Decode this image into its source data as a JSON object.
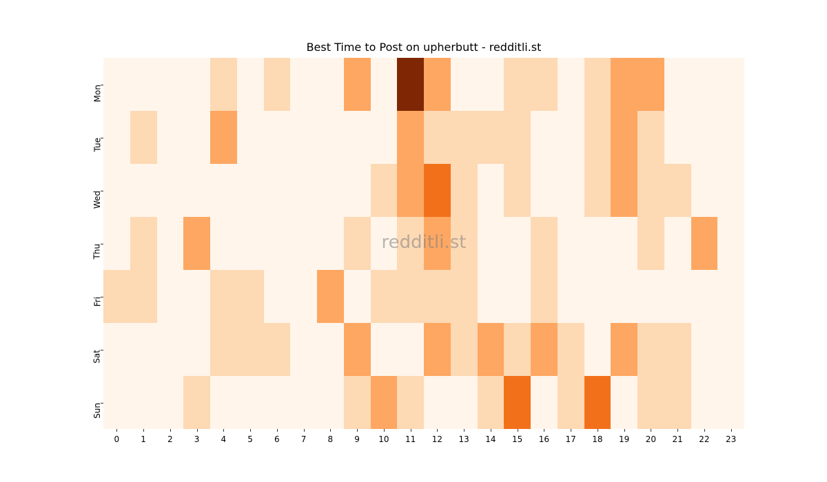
{
  "chart_data": {
    "type": "heatmap",
    "title": "Best Time to Post on upherbutt - redditli.st",
    "xlabel": "",
    "ylabel": "",
    "x": [
      "0",
      "1",
      "2",
      "3",
      "4",
      "5",
      "6",
      "7",
      "8",
      "9",
      "10",
      "11",
      "12",
      "13",
      "14",
      "15",
      "16",
      "17",
      "18",
      "19",
      "20",
      "21",
      "22",
      "23"
    ],
    "y": [
      "Mon",
      "Tue",
      "Wed",
      "Thu",
      "Fri",
      "Sat",
      "Sun"
    ],
    "colormap": "Oranges",
    "level_colors": [
      "#fff5eb",
      "#fdd9b4",
      "#fda762",
      "#f3701b",
      "#7f2704"
    ],
    "values": [
      [
        0,
        0,
        0,
        0,
        1,
        0,
        1,
        0,
        0,
        2,
        0,
        4,
        2,
        0,
        0,
        1,
        1,
        0,
        1,
        2,
        2,
        0,
        0,
        0
      ],
      [
        0,
        1,
        0,
        0,
        2,
        0,
        0,
        0,
        0,
        0,
        0,
        2,
        1,
        1,
        1,
        1,
        0,
        0,
        1,
        2,
        1,
        0,
        0,
        0
      ],
      [
        0,
        0,
        0,
        0,
        0,
        0,
        0,
        0,
        0,
        0,
        1,
        2,
        3,
        1,
        0,
        1,
        0,
        0,
        1,
        2,
        1,
        1,
        0,
        0
      ],
      [
        0,
        1,
        0,
        2,
        0,
        0,
        0,
        0,
        0,
        1,
        0,
        1,
        2,
        1,
        0,
        0,
        1,
        0,
        0,
        0,
        1,
        0,
        2,
        0
      ],
      [
        1,
        1,
        0,
        0,
        1,
        1,
        0,
        0,
        2,
        0,
        1,
        1,
        1,
        1,
        0,
        0,
        1,
        0,
        0,
        0,
        0,
        0,
        0,
        0
      ],
      [
        0,
        0,
        0,
        0,
        1,
        1,
        1,
        0,
        0,
        2,
        0,
        0,
        2,
        1,
        2,
        1,
        2,
        1,
        0,
        2,
        1,
        1,
        0,
        0
      ],
      [
        0,
        0,
        0,
        1,
        0,
        0,
        0,
        0,
        0,
        1,
        2,
        1,
        0,
        0,
        1,
        3,
        0,
        1,
        3,
        0,
        1,
        1,
        0,
        0
      ]
    ],
    "colorbar": false,
    "grid": false
  },
  "watermark": "redditli.st"
}
